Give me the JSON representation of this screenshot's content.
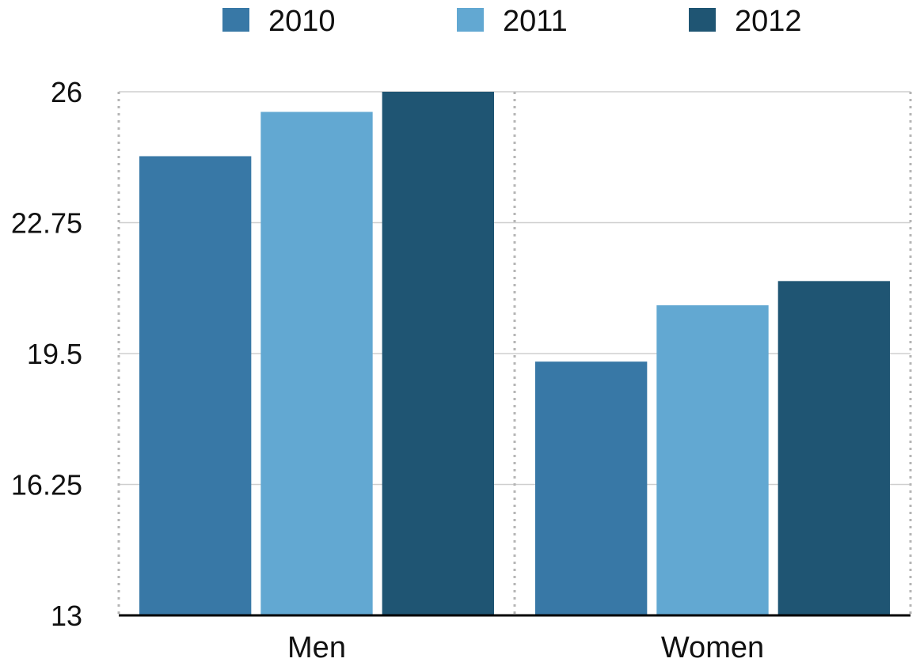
{
  "chart_data": {
    "type": "bar",
    "title": "",
    "xlabel": "",
    "ylabel": "",
    "categories": [
      "Men",
      "Women"
    ],
    "series": [
      {
        "name": "2010",
        "values": [
          24.4,
          19.3
        ],
        "color": "#3878a6"
      },
      {
        "name": "2011",
        "values": [
          25.5,
          20.7
        ],
        "color": "#62a8d2"
      },
      {
        "name": "2012",
        "values": [
          26.0,
          21.3
        ],
        "color": "#1f5573"
      }
    ],
    "ylim": [
      13,
      26
    ],
    "yticks": [
      "13",
      "16.25",
      "19.5",
      "22.75",
      "26"
    ],
    "legend_position": "top",
    "grid": {
      "horizontal": true,
      "vertical_dotted": true
    }
  }
}
